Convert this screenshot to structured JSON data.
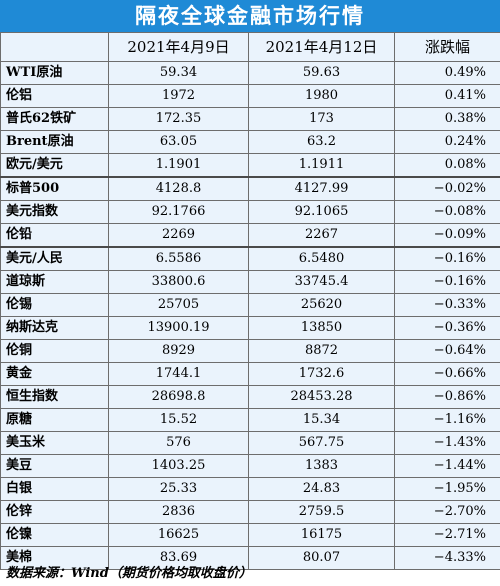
{
  "title": "隔夜全球金融市场行情",
  "headers": {
    "name": "",
    "date1": "2021年4月9日",
    "date2": "2021年4月12日",
    "change": "涨跌幅"
  },
  "rows": [
    {
      "name": "WTI原油",
      "v1": "59.34",
      "v2": "59.63",
      "chg": "0.49%"
    },
    {
      "name": "伦铝",
      "v1": "1972",
      "v2": "1980",
      "chg": "0.41%"
    },
    {
      "name": "普氏62铁矿",
      "v1": "172.35",
      "v2": "173",
      "chg": "0.38%"
    },
    {
      "name": "Brent原油",
      "v1": "63.05",
      "v2": "63.2",
      "chg": "0.24%"
    },
    {
      "name": "欧元/美元",
      "v1": "1.1901",
      "v2": "1.1911",
      "chg": "0.08%"
    },
    {
      "name": "标普500",
      "v1": "4128.8",
      "v2": "4127.99",
      "chg": "−0.02%"
    },
    {
      "name": "美元指数",
      "v1": "92.1766",
      "v2": "92.1065",
      "chg": "−0.08%"
    },
    {
      "name": "伦铅",
      "v1": "2269",
      "v2": "2267",
      "chg": "−0.09%"
    },
    {
      "name": "美元/人民",
      "v1": "6.5586",
      "v2": "6.5480",
      "chg": "−0.16%"
    },
    {
      "name": "道琼斯",
      "v1": "33800.6",
      "v2": "33745.4",
      "chg": "−0.16%"
    },
    {
      "name": "伦锡",
      "v1": "25705",
      "v2": "25620",
      "chg": "−0.33%"
    },
    {
      "name": "纳斯达克",
      "v1": "13900.19",
      "v2": "13850",
      "chg": "−0.36%"
    },
    {
      "name": "伦铜",
      "v1": "8929",
      "v2": "8872",
      "chg": "−0.64%"
    },
    {
      "name": "黄金",
      "v1": "1744.1",
      "v2": "1732.6",
      "chg": "−0.66%"
    },
    {
      "name": "恒生指数",
      "v1": "28698.8",
      "v2": "28453.28",
      "chg": "−0.86%"
    },
    {
      "name": "原糖",
      "v1": "15.52",
      "v2": "15.34",
      "chg": "−1.16%"
    },
    {
      "name": "美玉米",
      "v1": "576",
      "v2": "567.75",
      "chg": "−1.43%"
    },
    {
      "name": "美豆",
      "v1": "1403.25",
      "v2": "1383",
      "chg": "−1.44%"
    },
    {
      "name": "白银",
      "v1": "25.33",
      "v2": "24.83",
      "chg": "−1.95%"
    },
    {
      "name": "伦锌",
      "v1": "2836",
      "v2": "2759.5",
      "chg": "−2.70%"
    },
    {
      "name": "伦镍",
      "v1": "16625",
      "v2": "16175",
      "chg": "−2.71%"
    },
    {
      "name": "美棉",
      "v1": "83.69",
      "v2": "80.07",
      "chg": "−4.33%"
    }
  ],
  "source": "数据来源：Wind（期货价格均取收盘价）",
  "colors": {
    "title_bg": "#1f8ad6",
    "table_bg": "#eaf3fc",
    "border": "#6d6d6d"
  }
}
